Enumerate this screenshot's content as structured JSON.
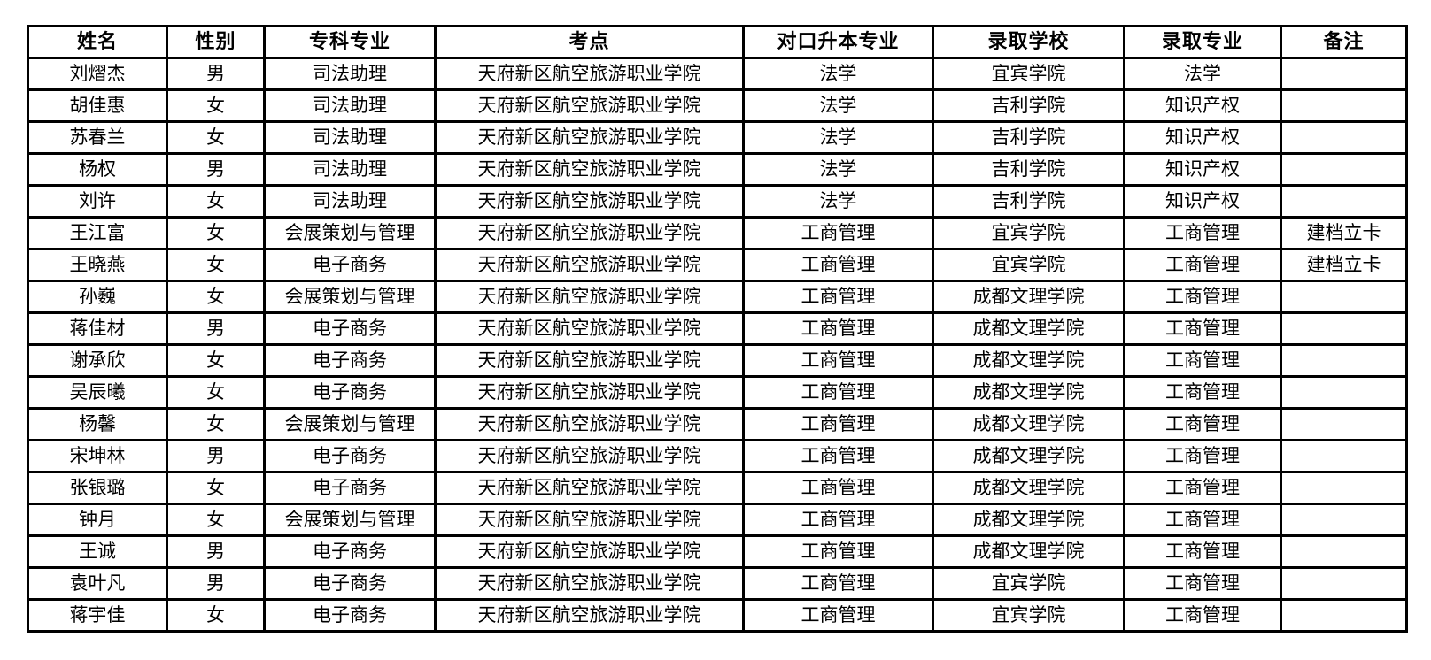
{
  "table": {
    "headers": [
      "姓名",
      "性别",
      "专科专业",
      "考点",
      "对口升本专业",
      "录取学校",
      "录取专业",
      "备注"
    ],
    "columns": [
      {
        "key": "name"
      },
      {
        "key": "gender"
      },
      {
        "key": "college_major"
      },
      {
        "key": "exam_site"
      },
      {
        "key": "target_major"
      },
      {
        "key": "admitted_school"
      },
      {
        "key": "admitted_major"
      },
      {
        "key": "remark"
      }
    ],
    "rows": [
      {
        "name": "刘熠杰",
        "gender": "男",
        "college_major": "司法助理",
        "exam_site": "天府新区航空旅游职业学院",
        "target_major": "法学",
        "admitted_school": "宜宾学院",
        "admitted_major": "法学",
        "remark": ""
      },
      {
        "name": "胡佳惠",
        "gender": "女",
        "college_major": "司法助理",
        "exam_site": "天府新区航空旅游职业学院",
        "target_major": "法学",
        "admitted_school": "吉利学院",
        "admitted_major": "知识产权",
        "remark": ""
      },
      {
        "name": "苏春兰",
        "gender": "女",
        "college_major": "司法助理",
        "exam_site": "天府新区航空旅游职业学院",
        "target_major": "法学",
        "admitted_school": "吉利学院",
        "admitted_major": "知识产权",
        "remark": ""
      },
      {
        "name": "杨权",
        "gender": "男",
        "college_major": "司法助理",
        "exam_site": "天府新区航空旅游职业学院",
        "target_major": "法学",
        "admitted_school": "吉利学院",
        "admitted_major": "知识产权",
        "remark": ""
      },
      {
        "name": "刘许",
        "gender": "女",
        "college_major": "司法助理",
        "exam_site": "天府新区航空旅游职业学院",
        "target_major": "法学",
        "admitted_school": "吉利学院",
        "admitted_major": "知识产权",
        "remark": ""
      },
      {
        "name": "王江富",
        "gender": "女",
        "college_major": "会展策划与管理",
        "exam_site": "天府新区航空旅游职业学院",
        "target_major": "工商管理",
        "admitted_school": "宜宾学院",
        "admitted_major": "工商管理",
        "remark": "建档立卡"
      },
      {
        "name": "王晓燕",
        "gender": "女",
        "college_major": "电子商务",
        "exam_site": "天府新区航空旅游职业学院",
        "target_major": "工商管理",
        "admitted_school": "宜宾学院",
        "admitted_major": "工商管理",
        "remark": "建档立卡"
      },
      {
        "name": "孙巍",
        "gender": "女",
        "college_major": "会展策划与管理",
        "exam_site": "天府新区航空旅游职业学院",
        "target_major": "工商管理",
        "admitted_school": "成都文理学院",
        "admitted_major": "工商管理",
        "remark": ""
      },
      {
        "name": "蒋佳材",
        "gender": "男",
        "college_major": "电子商务",
        "exam_site": "天府新区航空旅游职业学院",
        "target_major": "工商管理",
        "admitted_school": "成都文理学院",
        "admitted_major": "工商管理",
        "remark": ""
      },
      {
        "name": "谢承欣",
        "gender": "女",
        "college_major": "电子商务",
        "exam_site": "天府新区航空旅游职业学院",
        "target_major": "工商管理",
        "admitted_school": "成都文理学院",
        "admitted_major": "工商管理",
        "remark": ""
      },
      {
        "name": "吴辰曦",
        "gender": "女",
        "college_major": "电子商务",
        "exam_site": "天府新区航空旅游职业学院",
        "target_major": "工商管理",
        "admitted_school": "成都文理学院",
        "admitted_major": "工商管理",
        "remark": ""
      },
      {
        "name": "杨馨",
        "gender": "女",
        "college_major": "会展策划与管理",
        "exam_site": "天府新区航空旅游职业学院",
        "target_major": "工商管理",
        "admitted_school": "成都文理学院",
        "admitted_major": "工商管理",
        "remark": ""
      },
      {
        "name": "宋坤林",
        "gender": "男",
        "college_major": "电子商务",
        "exam_site": "天府新区航空旅游职业学院",
        "target_major": "工商管理",
        "admitted_school": "成都文理学院",
        "admitted_major": "工商管理",
        "remark": ""
      },
      {
        "name": "张银璐",
        "gender": "女",
        "college_major": "电子商务",
        "exam_site": "天府新区航空旅游职业学院",
        "target_major": "工商管理",
        "admitted_school": "成都文理学院",
        "admitted_major": "工商管理",
        "remark": ""
      },
      {
        "name": "钟月",
        "gender": "女",
        "college_major": "会展策划与管理",
        "exam_site": "天府新区航空旅游职业学院",
        "target_major": "工商管理",
        "admitted_school": "成都文理学院",
        "admitted_major": "工商管理",
        "remark": ""
      },
      {
        "name": "王诚",
        "gender": "男",
        "college_major": "电子商务",
        "exam_site": "天府新区航空旅游职业学院",
        "target_major": "工商管理",
        "admitted_school": "成都文理学院",
        "admitted_major": "工商管理",
        "remark": ""
      },
      {
        "name": "袁叶凡",
        "gender": "男",
        "college_major": "电子商务",
        "exam_site": "天府新区航空旅游职业学院",
        "target_major": "工商管理",
        "admitted_school": "宜宾学院",
        "admitted_major": "工商管理",
        "remark": ""
      },
      {
        "name": "蒋宇佳",
        "gender": "女",
        "college_major": "电子商务",
        "exam_site": "天府新区航空旅游职业学院",
        "target_major": "工商管理",
        "admitted_school": "宜宾学院",
        "admitted_major": "工商管理",
        "remark": ""
      }
    ]
  }
}
